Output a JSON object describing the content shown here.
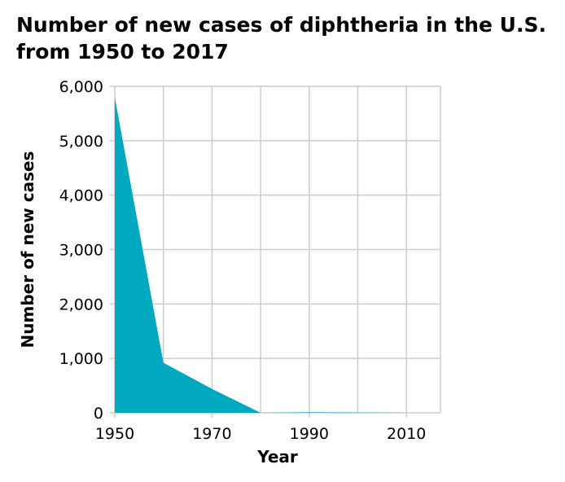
{
  "chart_data": {
    "type": "area",
    "title": "Number of new cases of diphtheria in the U.S. from 1950 to 2017",
    "xlabel": "Year",
    "ylabel": "Number of new cases",
    "x": [
      1950,
      1960,
      1970,
      1980,
      1990,
      2000,
      2010,
      2017
    ],
    "values": [
      5800,
      920,
      440,
      0,
      10,
      5,
      0,
      0
    ],
    "xlim": [
      1950,
      2017
    ],
    "ylim": [
      0,
      6000
    ],
    "xticks": [
      "1950",
      "1970",
      "1990",
      "2010"
    ],
    "xtick_values": [
      1950,
      1970,
      1990,
      2010
    ],
    "yticks": [
      "0",
      "1,000",
      "2,000",
      "3,000",
      "4,000",
      "5,000",
      "6,000"
    ],
    "ytick_values": [
      0,
      1000,
      2000,
      3000,
      4000,
      5000,
      6000
    ],
    "grid": true,
    "colors": {
      "area": "#00a9c0",
      "grid": "#cccccc"
    }
  }
}
